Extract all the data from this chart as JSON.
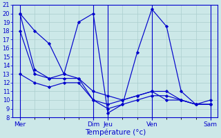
{
  "background_color": "#cce8e8",
  "grid_color": "#aacece",
  "line_color": "#0000cc",
  "spine_color": "#0000cc",
  "ylabel": "Température (°c)",
  "ylim": [
    8,
    21
  ],
  "xlim": [
    -0.5,
    13.5
  ],
  "yticks": [
    8,
    9,
    10,
    11,
    12,
    13,
    14,
    15,
    16,
    17,
    18,
    19,
    20,
    21
  ],
  "divider_x": [
    0,
    5,
    6,
    9,
    13
  ],
  "day_labels": [
    "Mer",
    "Dim",
    "Jeu",
    "Ven",
    "Sam"
  ],
  "series": [
    [
      20,
      18,
      16.5,
      13,
      19,
      20,
      8.5,
      9.5,
      15.5,
      20.5,
      18.5,
      11,
      9.5,
      9.5
    ],
    [
      13,
      12,
      11.5,
      12,
      12,
      10,
      9.5,
      10,
      10.5,
      11,
      10,
      10,
      9.5,
      9.5
    ],
    [
      18,
      13,
      12.5,
      12.5,
      12.5,
      10,
      9,
      9.5,
      10,
      10.5,
      10.5,
      10,
      9.5,
      9.5
    ],
    [
      20,
      13.5,
      12.5,
      13,
      12.5,
      11,
      10.5,
      10,
      10.5,
      11,
      11,
      10,
      9.5,
      10
    ]
  ],
  "marker": "D",
  "markersize": 2.2,
  "linewidth": 0.85,
  "xlabel_fontsize": 7.5,
  "ytick_fontsize": 6.0,
  "xtick_fontsize": 6.5
}
